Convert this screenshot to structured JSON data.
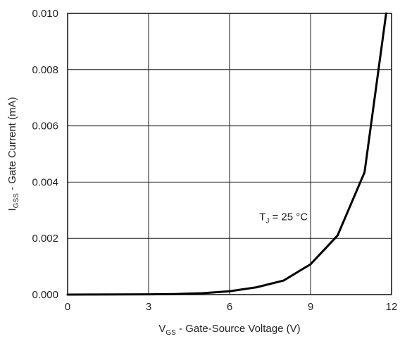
{
  "chart_data": {
    "type": "line",
    "xlabel": {
      "main": "V",
      "sub": "GS",
      "rest": " - Gate-Source Voltage (V)"
    },
    "ylabel": {
      "main": "I",
      "sub": "GSS",
      "rest": " - Gate Current (mA)"
    },
    "xlim": [
      0,
      12
    ],
    "ylim": [
      0,
      0.01
    ],
    "x_ticks": [
      "0",
      "3",
      "6",
      "9",
      "12"
    ],
    "x_tick_values": [
      0,
      3,
      6,
      9,
      12
    ],
    "y_ticks": [
      "0.000",
      "0.002",
      "0.004",
      "0.006",
      "0.008",
      "0.010"
    ],
    "y_tick_values": [
      0,
      0.002,
      0.004,
      0.006,
      0.008,
      0.01
    ],
    "grid": true,
    "annotation": {
      "main": "T",
      "sub": "J",
      "rest": " = 25 °C",
      "x": 7.1,
      "y": 0.00265
    },
    "series": [
      {
        "x": [
          0,
          1,
          2,
          3,
          4,
          5,
          6,
          7,
          8,
          9,
          10,
          11,
          11.8
        ],
        "y": [
          0.0,
          2e-06,
          5e-06,
          1e-05,
          2e-05,
          5e-05,
          0.00012,
          0.00026,
          0.0005,
          0.00108,
          0.0021,
          0.00435,
          0.01
        ]
      }
    ],
    "colors": {
      "line": "#000000",
      "grid": "#1a1a1a"
    }
  }
}
